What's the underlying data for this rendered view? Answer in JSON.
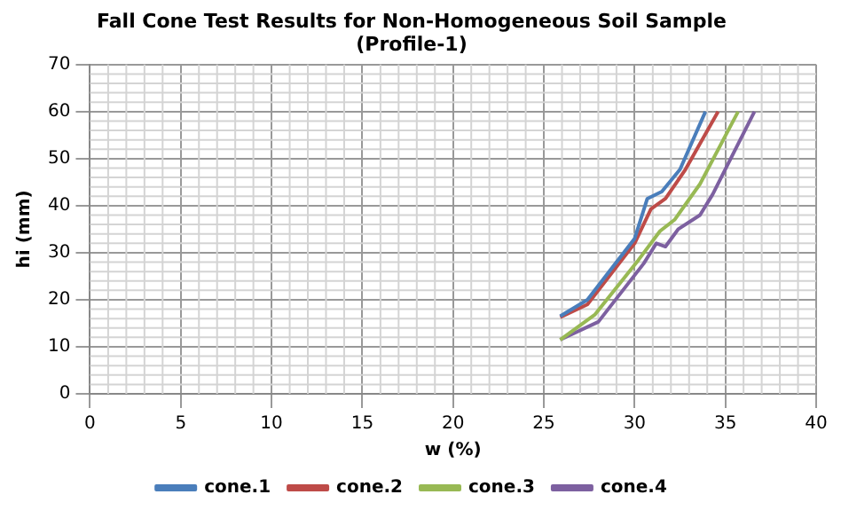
{
  "chart_data": {
    "type": "line",
    "title": [
      "Fall Cone Test Results for Non-Homogeneous Soil Sample",
      "(Profile-1)"
    ],
    "xlabel": "w (%)",
    "ylabel": "hi (mm)",
    "xlim": [
      0,
      40
    ],
    "ylim": [
      0,
      70
    ],
    "xticks": [
      0,
      5,
      10,
      15,
      20,
      25,
      30,
      35,
      40
    ],
    "yticks": [
      0,
      10,
      20,
      30,
      40,
      50,
      60,
      70
    ],
    "grid": true,
    "legend": "bottom",
    "marker": "none",
    "line_style": "solid",
    "series": [
      {
        "name": "cone.1",
        "color": "#4a7ebb",
        "x": [
          25.9,
          27.4,
          30.0,
          30.7,
          31.5,
          32.5,
          33.9
        ],
        "values": [
          16.5,
          20,
          33,
          41.5,
          43,
          47.7,
          60
        ]
      },
      {
        "name": "cone.2",
        "color": "#be4b48",
        "x": [
          25.9,
          27.4,
          30.0,
          30.9,
          31.7,
          32.8,
          34.6
        ],
        "values": [
          16.3,
          19,
          32,
          39.3,
          41.5,
          47.7,
          60
        ]
      },
      {
        "name": "cone.3",
        "color": "#98b954",
        "x": [
          25.9,
          27.8,
          30.2,
          31.4,
          32.2,
          33.6,
          35.7
        ],
        "values": [
          11.5,
          16.8,
          28.4,
          34.6,
          37,
          44.6,
          60
        ]
      },
      {
        "name": "cone.4",
        "color": "#7d60a0",
        "x": [
          25.9,
          28.0,
          30.5,
          31.2,
          31.7,
          32.4,
          33.6,
          34.3,
          36.6
        ],
        "values": [
          11.5,
          15.3,
          27.7,
          32,
          31.3,
          35,
          38,
          42.4,
          60
        ]
      }
    ]
  }
}
